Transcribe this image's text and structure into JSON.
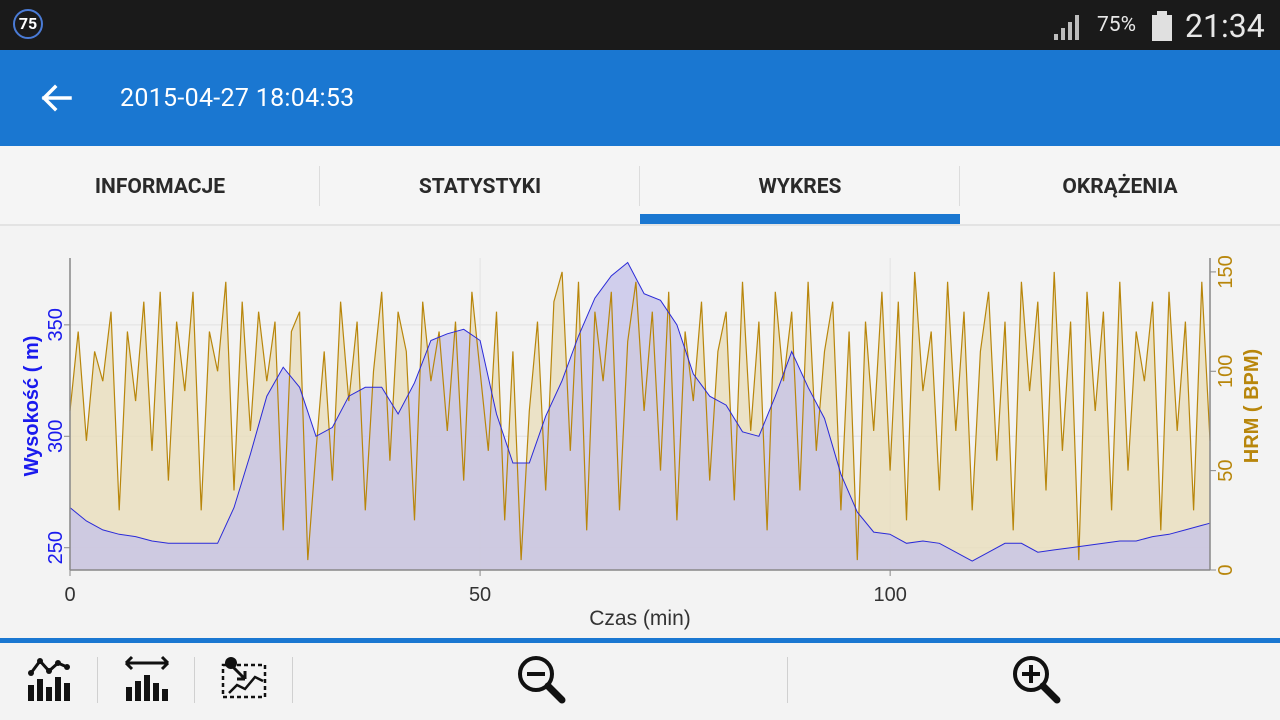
{
  "status_bar": {
    "notification_badge": "75",
    "battery_percent": "75%",
    "time": "21:34"
  },
  "app_bar": {
    "title": "2015-04-27 18:04:53",
    "back_icon": "arrow-left-icon"
  },
  "tabs": [
    {
      "label": "INFORMACJE",
      "selected": false
    },
    {
      "label": "STATYSTYKI",
      "selected": false
    },
    {
      "label": "WYKRES",
      "selected": true
    },
    {
      "label": "OKRĄŻENIA",
      "selected": false
    }
  ],
  "toolbar": {
    "icons": [
      "chart-line-bars-icon",
      "range-bars-icon",
      "map-select-icon",
      "zoom-out-icon",
      "zoom-in-icon"
    ]
  },
  "colors": {
    "accent": "#1a77d1",
    "altitude": "#2a2ad8",
    "hrm": "#b8860b"
  },
  "chart_data": {
    "type": "area",
    "xlabel": "Czas (min)",
    "ylabel_left": "Wysokość ( m)",
    "ylabel_right": "HRM ( BPM)",
    "x_ticks": [
      "0",
      "50",
      "100"
    ],
    "y_left_ticks": [
      "250",
      "300",
      "350"
    ],
    "y_right_ticks": [
      "0",
      "50",
      "100",
      "150"
    ],
    "xlim": [
      0,
      139
    ],
    "ylim_left": [
      240,
      380
    ],
    "ylim_right": [
      0,
      157
    ],
    "grid": true,
    "series": [
      {
        "name": "Wysokość ( m)",
        "axis": "left",
        "x": [
          0,
          2,
          4,
          6,
          8,
          10,
          12,
          14,
          16,
          18,
          20,
          22,
          24,
          26,
          28,
          30,
          32,
          34,
          36,
          38,
          40,
          42,
          44,
          46,
          48,
          50,
          52,
          54,
          56,
          58,
          60,
          62,
          64,
          66,
          68,
          70,
          72,
          74,
          76,
          78,
          80,
          82,
          84,
          86,
          88,
          90,
          92,
          94,
          96,
          98,
          100,
          102,
          104,
          106,
          108,
          110,
          112,
          114,
          116,
          118,
          120,
          122,
          124,
          126,
          128,
          130,
          132,
          134,
          136,
          138,
          139
        ],
        "y": [
          268,
          262,
          258,
          256,
          255,
          253,
          252,
          252,
          252,
          252,
          268,
          292,
          318,
          331,
          322,
          300,
          304,
          318,
          322,
          322,
          310,
          324,
          343,
          346,
          348,
          343,
          310,
          288,
          288,
          309,
          325,
          345,
          362,
          372,
          378,
          364,
          361,
          350,
          328,
          318,
          314,
          302,
          300,
          318,
          338,
          322,
          308,
          283,
          266,
          257,
          256,
          252,
          253,
          252,
          248,
          244,
          248,
          252,
          252,
          248,
          249,
          250,
          251,
          252,
          253,
          253,
          255,
          256,
          258,
          260,
          261
        ]
      },
      {
        "name": "HRM ( BPM)",
        "axis": "right",
        "x": [
          0,
          1,
          2,
          3,
          4,
          5,
          6,
          7,
          8,
          9,
          10,
          11,
          12,
          13,
          14,
          15,
          16,
          17,
          18,
          19,
          20,
          21,
          22,
          23,
          24,
          25,
          26,
          27,
          28,
          29,
          30,
          31,
          32,
          33,
          34,
          35,
          36,
          37,
          38,
          39,
          40,
          41,
          42,
          43,
          44,
          45,
          46,
          47,
          48,
          49,
          50,
          51,
          52,
          53,
          54,
          55,
          56,
          57,
          58,
          59,
          60,
          61,
          62,
          63,
          64,
          65,
          66,
          67,
          68,
          69,
          70,
          71,
          72,
          73,
          74,
          75,
          76,
          77,
          78,
          79,
          80,
          81,
          82,
          83,
          84,
          85,
          86,
          87,
          88,
          89,
          90,
          91,
          92,
          93,
          94,
          95,
          96,
          97,
          98,
          99,
          100,
          101,
          102,
          103,
          104,
          105,
          106,
          107,
          108,
          109,
          110,
          111,
          112,
          113,
          114,
          115,
          116,
          117,
          118,
          119,
          120,
          121,
          122,
          123,
          124,
          125,
          126,
          127,
          128,
          129,
          130,
          131,
          132,
          133,
          134,
          135,
          136,
          137,
          138,
          139
        ],
        "y": [
          80,
          120,
          65,
          110,
          95,
          130,
          30,
          120,
          85,
          135,
          60,
          140,
          45,
          125,
          90,
          140,
          30,
          120,
          100,
          145,
          40,
          135,
          70,
          130,
          95,
          125,
          20,
          120,
          130,
          5,
          60,
          110,
          45,
          135,
          85,
          125,
          30,
          100,
          140,
          55,
          130,
          110,
          25,
          135,
          95,
          120,
          70,
          125,
          45,
          140,
          100,
          60,
          130,
          25,
          110,
          5,
          80,
          125,
          40,
          135,
          150,
          60,
          145,
          20,
          130,
          95,
          140,
          30,
          115,
          145,
          80,
          130,
          50,
          140,
          25,
          120,
          85,
          135,
          45,
          110,
          130,
          35,
          145,
          70,
          125,
          20,
          140,
          95,
          130,
          40,
          145,
          60,
          110,
          135,
          30,
          120,
          5,
          125,
          70,
          140,
          50,
          135,
          25,
          150,
          90,
          120,
          40,
          145,
          70,
          130,
          30,
          110,
          140,
          55,
          125,
          20,
          145,
          90,
          135,
          40,
          150,
          60,
          125,
          5,
          140,
          80,
          130,
          30,
          145,
          50,
          120,
          95,
          135,
          20,
          140,
          70,
          125,
          30,
          145,
          65
        ]
      }
    ]
  }
}
